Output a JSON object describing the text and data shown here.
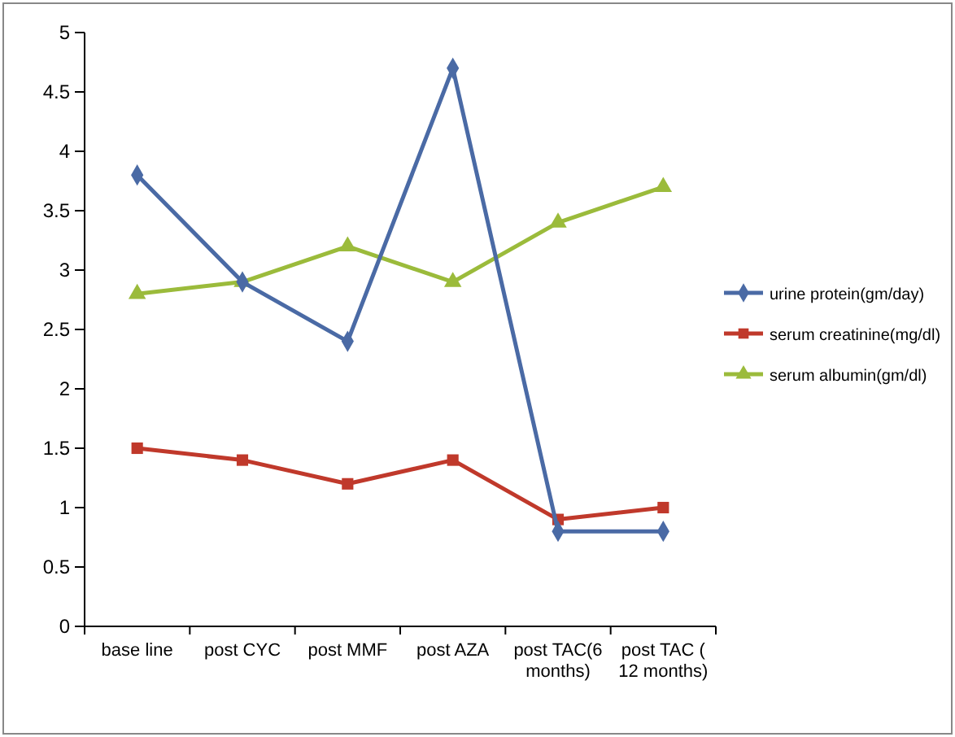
{
  "chart_data": {
    "type": "line",
    "categories": [
      "base line",
      "post CYC",
      "post MMF",
      "post AZA",
      "post TAC(6 months)",
      "post TAC ( 12 months)"
    ],
    "series": [
      {
        "name": "urine protein(gm/day)",
        "color": "#4a6aa5",
        "marker": "diamond",
        "values": [
          3.8,
          2.9,
          2.4,
          4.7,
          0.8,
          0.8
        ]
      },
      {
        "name": "serum creatinine(mg/dl)",
        "color": "#c0392b",
        "marker": "square",
        "values": [
          1.5,
          1.4,
          1.2,
          1.4,
          0.9,
          1.0
        ]
      },
      {
        "name": "serum albumin(gm/dl)",
        "color": "#9bbb3b",
        "marker": "triangle",
        "values": [
          2.8,
          2.9,
          3.2,
          2.9,
          3.4,
          3.7
        ]
      }
    ],
    "ylim": [
      0,
      5
    ],
    "yticks": [
      0,
      0.5,
      1,
      1.5,
      2,
      2.5,
      3,
      3.5,
      4,
      4.5,
      5
    ],
    "grid": false,
    "legend": "right",
    "line_style": "solid"
  }
}
